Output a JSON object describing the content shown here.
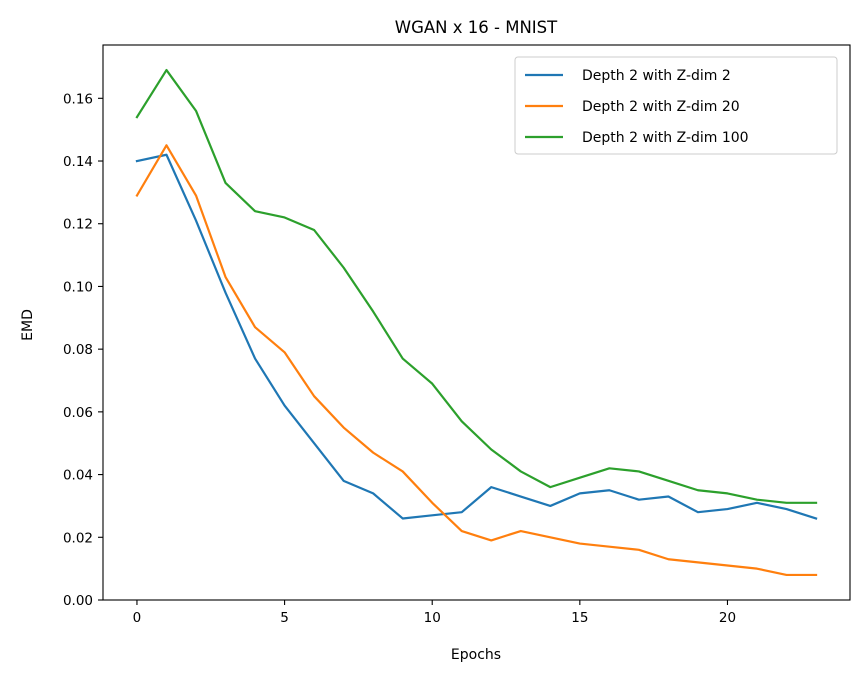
{
  "chart_data": {
    "type": "line",
    "title": "WGAN x 16 - MNIST",
    "xlabel": "Epochs",
    "ylabel": "EMD",
    "xlim": [
      -1.15,
      24.15
    ],
    "ylim": [
      0,
      0.177
    ],
    "x_ticks": [
      0,
      5,
      10,
      15,
      20
    ],
    "y_ticks": [
      0.0,
      0.02,
      0.04,
      0.06,
      0.08,
      0.1,
      0.12,
      0.14,
      0.16
    ],
    "y_tick_labels": [
      "0.00",
      "0.02",
      "0.04",
      "0.06",
      "0.08",
      "0.10",
      "0.12",
      "0.14",
      "0.16"
    ],
    "grid": false,
    "legend_position": "top-right",
    "x": [
      0,
      1,
      2,
      3,
      4,
      5,
      6,
      7,
      8,
      9,
      10,
      11,
      12,
      13,
      14,
      15,
      16,
      17,
      18,
      19,
      20,
      21,
      22,
      23
    ],
    "series": [
      {
        "name": "Depth 2 with Z-dim 2",
        "color": "#1f77b4",
        "values": [
          0.14,
          0.142,
          0.121,
          0.098,
          0.077,
          0.062,
          0.05,
          0.038,
          0.034,
          0.026,
          0.027,
          0.028,
          0.036,
          0.033,
          0.03,
          0.034,
          0.035,
          0.032,
          0.033,
          0.028,
          0.029,
          0.031,
          0.029,
          0.026
        ]
      },
      {
        "name": "Depth 2 with Z-dim 20",
        "color": "#ff7f0e",
        "values": [
          0.129,
          0.145,
          0.129,
          0.103,
          0.087,
          0.079,
          0.065,
          0.055,
          0.047,
          0.041,
          0.031,
          0.022,
          0.019,
          0.022,
          0.02,
          0.018,
          0.017,
          0.016,
          0.013,
          0.012,
          0.011,
          0.01,
          0.008,
          0.008
        ]
      },
      {
        "name": "Depth 2 with Z-dim 100",
        "color": "#2ca02c",
        "values": [
          0.154,
          0.169,
          0.156,
          0.133,
          0.124,
          0.122,
          0.118,
          0.106,
          0.092,
          0.077,
          0.069,
          0.057,
          0.048,
          0.041,
          0.036,
          0.039,
          0.042,
          0.041,
          0.038,
          0.035,
          0.034,
          0.032,
          0.031,
          0.031
        ]
      }
    ]
  }
}
